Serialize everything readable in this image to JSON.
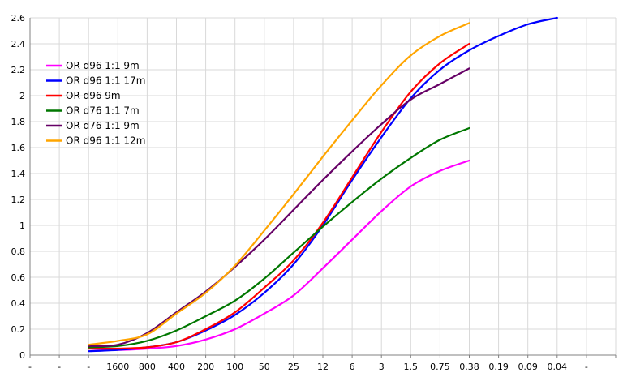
{
  "chart_data": {
    "type": "line",
    "title": "",
    "xlabel": "",
    "ylabel": "",
    "ylim": [
      0,
      2.6
    ],
    "y_ticks": [
      "0",
      "0.2",
      "0.4",
      "0.6",
      "0.8",
      "1",
      "1.2",
      "1.4",
      "1.6",
      "1.8",
      "2",
      "2.2",
      "2.4",
      "2.6"
    ],
    "categories": [
      "-",
      "-",
      "-",
      "1600",
      "800",
      "400",
      "200",
      "100",
      "50",
      "25",
      "12",
      "6",
      "3",
      "1.5",
      "0.75",
      "0.38",
      "0.19",
      "0.09",
      "0.04",
      "-"
    ],
    "grid": true,
    "legend_position": "top-left",
    "series": [
      {
        "name": "OR d96 1:1 9m",
        "color": "#ff00ff",
        "values": [
          null,
          null,
          0.05,
          0.04,
          0.05,
          0.07,
          0.12,
          0.2,
          0.32,
          0.46,
          0.67,
          0.89,
          1.11,
          1.3,
          1.42,
          1.5,
          null,
          null,
          null,
          null
        ]
      },
      {
        "name": "OR d96 1:1 17m",
        "color": "#0000ff",
        "values": [
          null,
          null,
          0.03,
          0.04,
          0.06,
          0.1,
          0.19,
          0.31,
          0.48,
          0.7,
          1.0,
          1.35,
          1.68,
          1.98,
          2.2,
          2.35,
          2.46,
          2.55,
          2.6,
          null
        ]
      },
      {
        "name": "OR d96 9m",
        "color": "#ff0000",
        "values": [
          null,
          null,
          0.05,
          0.05,
          0.06,
          0.1,
          0.2,
          0.33,
          0.52,
          0.73,
          1.02,
          1.37,
          1.72,
          2.03,
          2.25,
          2.4,
          null,
          null,
          null,
          null
        ]
      },
      {
        "name": "OR d76 1:1 7m",
        "color": "#007700",
        "values": [
          null,
          null,
          0.06,
          0.07,
          0.11,
          0.19,
          0.3,
          0.42,
          0.59,
          0.79,
          0.99,
          1.18,
          1.36,
          1.52,
          1.66,
          1.75,
          null,
          null,
          null,
          null
        ]
      },
      {
        "name": "OR d76 1:1 9m",
        "color": "#660066",
        "values": [
          null,
          null,
          0.07,
          0.08,
          0.17,
          0.33,
          0.49,
          0.68,
          0.89,
          1.12,
          1.35,
          1.57,
          1.78,
          1.97,
          2.09,
          2.21,
          null,
          null,
          null,
          null
        ]
      },
      {
        "name": "OR d96 1:1 12m",
        "color": "#ffa500",
        "values": [
          null,
          null,
          0.08,
          0.11,
          0.16,
          0.32,
          0.48,
          0.69,
          0.96,
          1.24,
          1.53,
          1.81,
          2.08,
          2.31,
          2.46,
          2.56,
          null,
          null,
          null,
          null
        ]
      }
    ]
  }
}
